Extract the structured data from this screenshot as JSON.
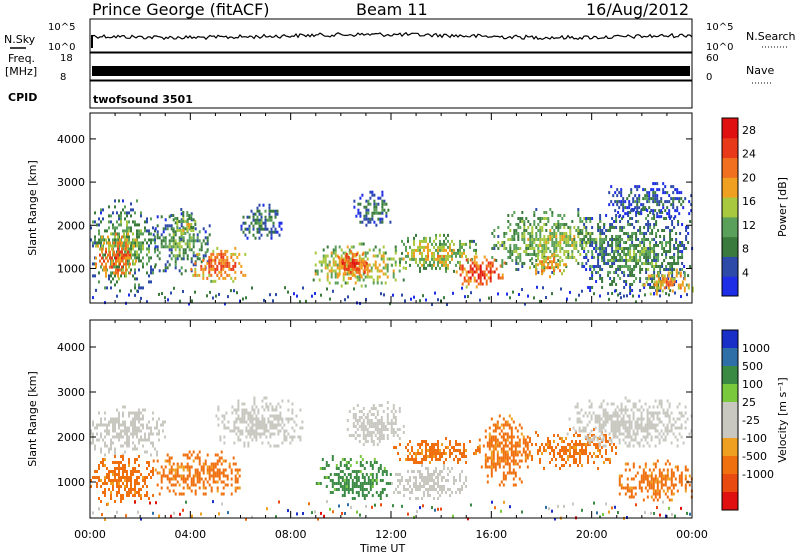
{
  "header": {
    "station": "Prince George (fitACF)",
    "beam": "Beam 11",
    "date": "16/Aug/2012"
  },
  "top_panels": {
    "nsky_label": "N.Sky",
    "nsearch_label": "N.Search",
    "freq_label_1": "Freq.",
    "freq_label_2": "[MHz]",
    "nave_label": "Nave",
    "cpid_label": "CPID",
    "cpid_value": "twofsound 3501",
    "noise_left_ticks": [
      "10^5",
      "10^0"
    ],
    "noise_right_ticks": [
      "10^5",
      "10^0"
    ],
    "freq_ticks": [
      "18",
      "8"
    ],
    "nave_ticks": [
      "60",
      "0"
    ]
  },
  "colors": {
    "power_scale": [
      "#1e2de6",
      "#2e4aa8",
      "#3a7a3c",
      "#5aa05a",
      "#a8c840",
      "#f0a020",
      "#f07020",
      "#e83a1a",
      "#e01010"
    ],
    "velocity_scale": [
      "#1a2ec8",
      "#2f6fa8",
      "#3a8a44",
      "#7ac83c",
      "#c8c8c0",
      "#c8c8c0",
      "#f0a020",
      "#f07010",
      "#e84a10",
      "#e01010"
    ],
    "ground_scatter": "#c8c8c0"
  },
  "chart_data": [
    {
      "type": "heatmap",
      "quantity": "Power",
      "xlabel": "",
      "ylabel": "Slant Range [km]",
      "xlim": [
        0,
        24
      ],
      "ylim": [
        200,
        4600
      ],
      "y_ticks": [
        1000,
        2000,
        3000,
        4000
      ],
      "colorbar_label": "Power [dB]",
      "colorbar_ticks": [
        4,
        8,
        12,
        16,
        20,
        24,
        28
      ],
      "colorbar_range": [
        0,
        30
      ],
      "regions": [
        {
          "t0": 0.0,
          "t1": 2.6,
          "r0": 500,
          "r1": 2600,
          "level": 14
        },
        {
          "t0": 0.2,
          "t1": 1.8,
          "r0": 800,
          "r1": 1900,
          "level": 26
        },
        {
          "t0": 2.5,
          "t1": 4.8,
          "r0": 900,
          "r1": 2300,
          "level": 12
        },
        {
          "t0": 4.0,
          "t1": 6.2,
          "r0": 700,
          "r1": 1500,
          "level": 25
        },
        {
          "t0": 3.2,
          "t1": 4.2,
          "r0": 1700,
          "r1": 2400,
          "level": 16
        },
        {
          "t0": 6.0,
          "t1": 7.6,
          "r0": 1700,
          "r1": 2500,
          "level": 10
        },
        {
          "t0": 8.8,
          "t1": 12.5,
          "r0": 600,
          "r1": 1600,
          "level": 20
        },
        {
          "t0": 9.8,
          "t1": 11.0,
          "r0": 800,
          "r1": 1500,
          "level": 28
        },
        {
          "t0": 12.0,
          "t1": 15.5,
          "r0": 900,
          "r1": 1800,
          "level": 18
        },
        {
          "t0": 14.5,
          "t1": 16.5,
          "r0": 600,
          "r1": 1300,
          "level": 28
        },
        {
          "t0": 16.0,
          "t1": 20.5,
          "r0": 900,
          "r1": 2400,
          "level": 16
        },
        {
          "t0": 17.5,
          "t1": 19.0,
          "r0": 800,
          "r1": 1400,
          "level": 22
        },
        {
          "t0": 19.5,
          "t1": 24.0,
          "r0": 400,
          "r1": 2400,
          "level": 12
        },
        {
          "t0": 22.0,
          "t1": 24.0,
          "r0": 400,
          "r1": 1000,
          "level": 22
        },
        {
          "t0": 10.5,
          "t1": 12.0,
          "r0": 2000,
          "r1": 2800,
          "level": 10
        },
        {
          "t0": 20.5,
          "t1": 24.0,
          "r0": 2200,
          "r1": 3000,
          "level": 8
        }
      ]
    },
    {
      "type": "heatmap",
      "quantity": "Velocity",
      "xlabel": "Time UT",
      "ylabel": "Slant Range [km]",
      "xlim": [
        0,
        24
      ],
      "ylim": [
        200,
        4600
      ],
      "x_ticks": [
        "00:00",
        "04:00",
        "08:00",
        "12:00",
        "16:00",
        "20:00",
        "00:00"
      ],
      "y_ticks": [
        1000,
        2000,
        3000,
        4000
      ],
      "colorbar_label": "Velocity [m s⁻¹]",
      "colorbar_ticks": [
        "1000",
        "500",
        "100",
        "25",
        "-25",
        "-100",
        "-500",
        "-1000"
      ],
      "regions": [
        {
          "t0": 0.0,
          "t1": 3.0,
          "r0": 1600,
          "r1": 2700,
          "level": "ground"
        },
        {
          "t0": 0.0,
          "t1": 2.5,
          "r0": 500,
          "r1": 1600,
          "level": -150
        },
        {
          "t0": 2.5,
          "t1": 6.0,
          "r0": 700,
          "r1": 1700,
          "level": -300
        },
        {
          "t0": 5.0,
          "t1": 8.5,
          "r0": 1800,
          "r1": 2900,
          "level": "ground"
        },
        {
          "t0": 9.0,
          "t1": 12.0,
          "r0": 600,
          "r1": 1600,
          "level": 150
        },
        {
          "t0": 12.0,
          "t1": 15.0,
          "r0": 600,
          "r1": 1400,
          "level": "ground"
        },
        {
          "t0": 12.0,
          "t1": 15.5,
          "r0": 1400,
          "r1": 2000,
          "level": -200
        },
        {
          "t0": 15.5,
          "t1": 17.5,
          "r0": 900,
          "r1": 2500,
          "level": -400
        },
        {
          "t0": 17.5,
          "t1": 21.0,
          "r0": 1300,
          "r1": 2200,
          "level": -250
        },
        {
          "t0": 19.0,
          "t1": 24.0,
          "r0": 1800,
          "r1": 2900,
          "level": "ground"
        },
        {
          "t0": 21.0,
          "t1": 24.0,
          "r0": 600,
          "r1": 1500,
          "level": -300
        },
        {
          "t0": 10.0,
          "t1": 12.5,
          "r0": 1800,
          "r1": 2800,
          "level": "ground"
        }
      ]
    }
  ]
}
